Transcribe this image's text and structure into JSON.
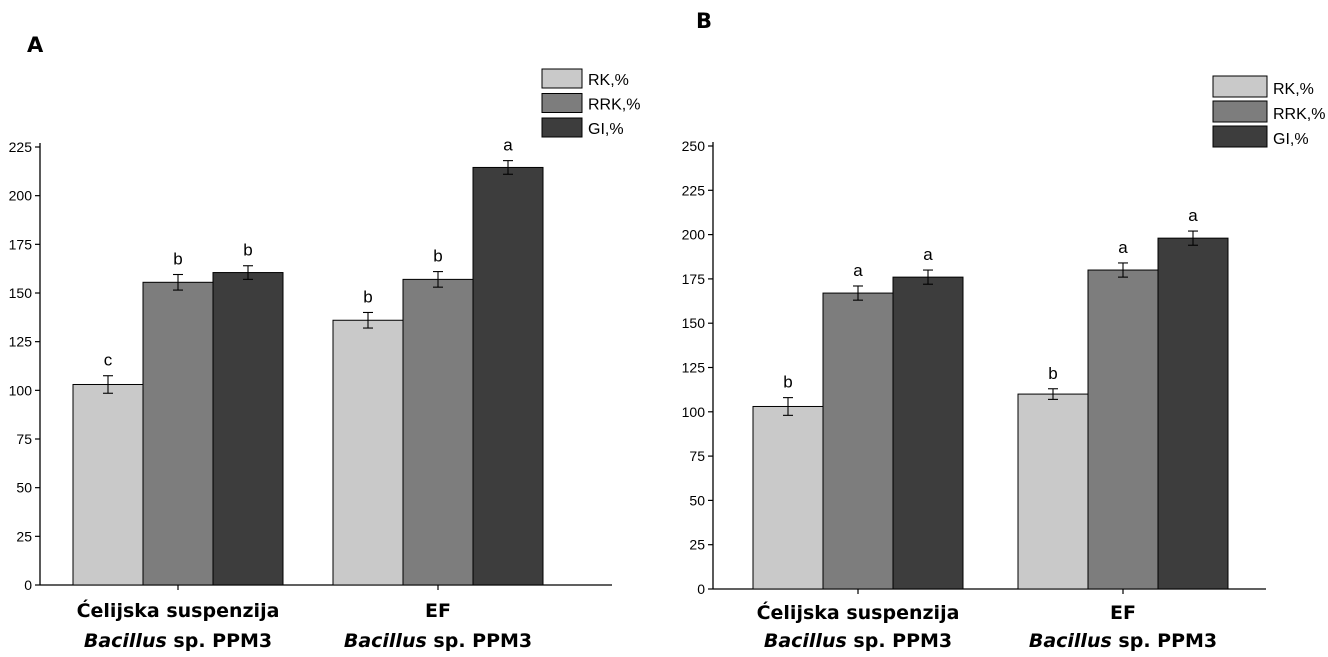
{
  "chart_data": [
    {
      "type": "bar",
      "panel_label": "A",
      "categories": [
        {
          "line1": "Ćelijska suspenzija",
          "line2_italic": "Bacillus",
          "line2_rest": " sp. PPM3"
        },
        {
          "line1": "EF",
          "line2_italic": "Bacillus",
          "line2_rest": " sp. PPM3"
        }
      ],
      "series": [
        {
          "name": "RK,%",
          "color": "#c9c9c9",
          "values": [
            103,
            136
          ],
          "errors": [
            4.5,
            4
          ],
          "labels": [
            "c",
            "b"
          ]
        },
        {
          "name": "RRK,%",
          "color": "#7d7d7d",
          "values": [
            155.5,
            157
          ],
          "errors": [
            4,
            4
          ],
          "labels": [
            "b",
            "b"
          ]
        },
        {
          "name": "GI,%",
          "color": "#3d3d3d",
          "values": [
            160.5,
            214.5
          ],
          "errors": [
            3.5,
            3.5
          ],
          "labels": [
            "b",
            "a"
          ]
        }
      ],
      "ylim": [
        0,
        225
      ],
      "yticks": [
        "0",
        "25",
        "50",
        "75",
        "100",
        "125",
        "150",
        "175",
        "200",
        "225"
      ],
      "legend_position": "top-right",
      "grid": false
    },
    {
      "type": "bar",
      "panel_label": "B",
      "categories": [
        {
          "line1": "Ćelijska suspenzija",
          "line2_italic": "Bacillus",
          "line2_rest": " sp. PPM3"
        },
        {
          "line1": "EF",
          "line2_italic": "Bacillus",
          "line2_rest": " sp. PPM3"
        }
      ],
      "series": [
        {
          "name": "RK,%",
          "color": "#c9c9c9",
          "values": [
            103,
            110
          ],
          "errors": [
            5,
            3
          ],
          "labels": [
            "b",
            "b"
          ]
        },
        {
          "name": "RRK,%",
          "color": "#7d7d7d",
          "values": [
            167,
            180
          ],
          "errors": [
            4,
            4
          ],
          "labels": [
            "a",
            "a"
          ]
        },
        {
          "name": "GI,%",
          "color": "#3d3d3d",
          "values": [
            176,
            198
          ],
          "errors": [
            4,
            4
          ],
          "labels": [
            "a",
            "a"
          ]
        }
      ],
      "ylim": [
        0,
        250
      ],
      "yticks": [
        "0",
        "25",
        "50",
        "75",
        "100",
        "125",
        "150",
        "175",
        "200",
        "225",
        "250"
      ],
      "legend_position": "top-right",
      "grid": false
    }
  ]
}
